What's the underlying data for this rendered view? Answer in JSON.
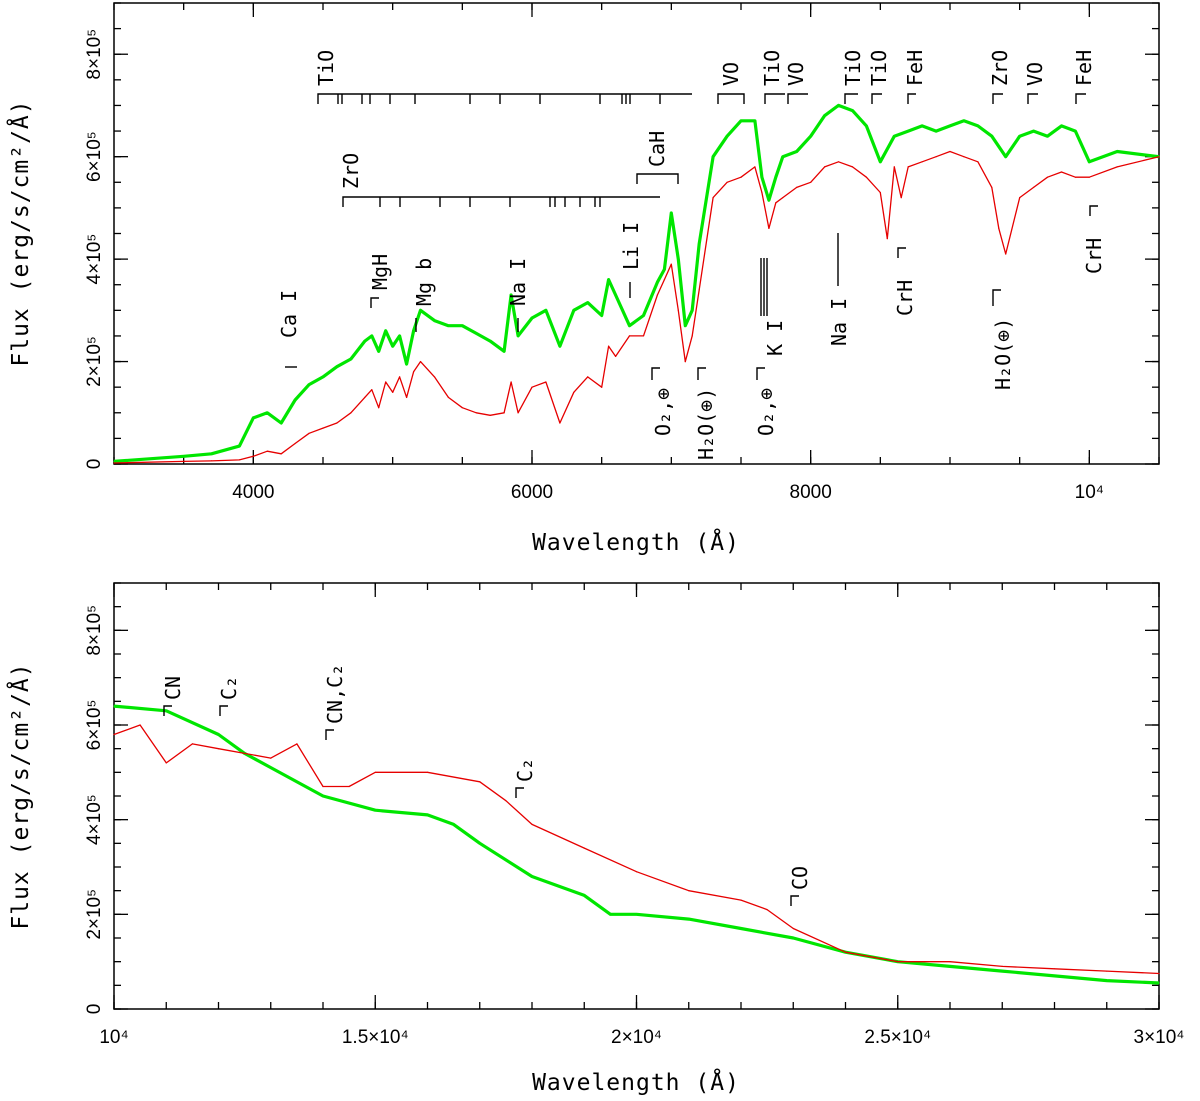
{
  "chart_data": [
    {
      "type": "line",
      "panel": "top",
      "xlabel": "Wavelength (Å)",
      "ylabel": "Flux (erg/s/cm²/Å)",
      "xlim": [
        3000,
        10500
      ],
      "ylim": [
        0,
        900000
      ],
      "x_ticks": [
        {
          "value": 4000,
          "label": "4000"
        },
        {
          "value": 6000,
          "label": "6000"
        },
        {
          "value": 8000,
          "label": "8000"
        },
        {
          "value": 10000,
          "label": "10⁴"
        }
      ],
      "y_ticks": [
        {
          "value": 0,
          "label": "0"
        },
        {
          "value": 200000,
          "label": "2×10⁵"
        },
        {
          "value": 400000,
          "label": "4×10⁵"
        },
        {
          "value": 600000,
          "label": "6×10⁵"
        },
        {
          "value": 800000,
          "label": "8×10⁵"
        }
      ],
      "series": [
        {
          "name": "green spectrum",
          "color": "#00e600",
          "x": [
            3000,
            3500,
            3700,
            3900,
            4000,
            4100,
            4200,
            4300,
            4400,
            4500,
            4600,
            4700,
            4800,
            4850,
            4900,
            4950,
            5000,
            5050,
            5100,
            5150,
            5200,
            5300,
            5400,
            5500,
            5600,
            5700,
            5800,
            5850,
            5900,
            6000,
            6100,
            6200,
            6300,
            6400,
            6500,
            6550,
            6600,
            6700,
            6800,
            6900,
            6950,
            7000,
            7050,
            7100,
            7150,
            7200,
            7300,
            7400,
            7500,
            7600,
            7650,
            7700,
            7750,
            7800,
            7900,
            8000,
            8100,
            8200,
            8300,
            8400,
            8500,
            8600,
            8700,
            8800,
            8900,
            9000,
            9100,
            9200,
            9300,
            9400,
            9500,
            9600,
            9700,
            9800,
            9900,
            10000,
            10200,
            10500
          ],
          "values": [
            5000,
            15000,
            20000,
            35000,
            90000,
            100000,
            80000,
            125000,
            155000,
            170000,
            190000,
            205000,
            240000,
            250000,
            220000,
            260000,
            230000,
            250000,
            195000,
            260000,
            300000,
            280000,
            270000,
            270000,
            255000,
            240000,
            220000,
            330000,
            250000,
            285000,
            300000,
            230000,
            300000,
            315000,
            290000,
            360000,
            330000,
            270000,
            290000,
            355000,
            380000,
            490000,
            400000,
            270000,
            300000,
            430000,
            600000,
            640000,
            670000,
            670000,
            560000,
            515000,
            560000,
            600000,
            610000,
            640000,
            680000,
            700000,
            690000,
            660000,
            590000,
            640000,
            650000,
            660000,
            650000,
            660000,
            670000,
            660000,
            640000,
            600000,
            640000,
            650000,
            640000,
            660000,
            650000,
            590000,
            610000,
            600000
          ]
        },
        {
          "name": "red spectrum",
          "color": "#e60000",
          "x": [
            3000,
            3500,
            3700,
            3900,
            4000,
            4100,
            4200,
            4300,
            4400,
            4500,
            4600,
            4700,
            4800,
            4850,
            4900,
            4950,
            5000,
            5050,
            5100,
            5150,
            5200,
            5300,
            5400,
            5500,
            5600,
            5700,
            5800,
            5850,
            5900,
            6000,
            6100,
            6200,
            6300,
            6400,
            6500,
            6550,
            6600,
            6700,
            6800,
            6900,
            6950,
            7000,
            7050,
            7100,
            7150,
            7200,
            7300,
            7400,
            7500,
            7600,
            7650,
            7700,
            7750,
            7800,
            7900,
            8000,
            8100,
            8200,
            8300,
            8400,
            8500,
            8550,
            8600,
            8650,
            8700,
            8800,
            8900,
            9000,
            9100,
            9200,
            9300,
            9350,
            9400,
            9500,
            9600,
            9700,
            9800,
            9900,
            10000,
            10200,
            10500
          ],
          "values": [
            2000,
            5000,
            6000,
            8000,
            15000,
            25000,
            20000,
            40000,
            60000,
            70000,
            80000,
            100000,
            130000,
            145000,
            110000,
            160000,
            140000,
            170000,
            130000,
            180000,
            200000,
            170000,
            130000,
            110000,
            100000,
            95000,
            100000,
            160000,
            100000,
            150000,
            160000,
            80000,
            140000,
            170000,
            150000,
            230000,
            210000,
            250000,
            250000,
            330000,
            360000,
            390000,
            300000,
            200000,
            250000,
            340000,
            520000,
            550000,
            560000,
            580000,
            530000,
            460000,
            510000,
            520000,
            540000,
            550000,
            580000,
            590000,
            580000,
            560000,
            530000,
            440000,
            580000,
            520000,
            580000,
            590000,
            600000,
            610000,
            600000,
            590000,
            540000,
            460000,
            410000,
            520000,
            540000,
            560000,
            570000,
            560000,
            560000,
            580000,
            600000
          ]
        }
      ],
      "annotations": [
        "TiO",
        "ZrO",
        "CaH",
        "VO",
        "TiO",
        "VO",
        "TiO",
        "TiO",
        "FeH",
        "ZrO",
        "VO",
        "FeH",
        "Ca I",
        "MgH",
        "Mg b",
        "Na I",
        "Li I",
        "O₂,⊕",
        "H₂O(⊕)",
        "O₂,⊕",
        "K I",
        "Na I",
        "CrH",
        "H₂O(⊕)",
        "CrH"
      ]
    },
    {
      "type": "line",
      "panel": "bottom",
      "xlabel": "Wavelength (Å)",
      "ylabel": "Flux (erg/s/cm²/Å)",
      "xlim": [
        10000,
        30000
      ],
      "ylim": [
        0,
        900000
      ],
      "x_ticks": [
        {
          "value": 10000,
          "label": "10⁴"
        },
        {
          "value": 15000,
          "label": "1.5×10⁴"
        },
        {
          "value": 20000,
          "label": "2×10⁴"
        },
        {
          "value": 25000,
          "label": "2.5×10⁴"
        },
        {
          "value": 30000,
          "label": "3×10⁴"
        }
      ],
      "y_ticks": [
        {
          "value": 0,
          "label": "0"
        },
        {
          "value": 200000,
          "label": "2×10⁵"
        },
        {
          "value": 400000,
          "label": "4×10⁵"
        },
        {
          "value": 600000,
          "label": "6×10⁵"
        },
        {
          "value": 800000,
          "label": "8×10⁵"
        }
      ],
      "series": [
        {
          "name": "green spectrum",
          "color": "#00e600",
          "x": [
            10000,
            11000,
            12000,
            12500,
            13000,
            14000,
            15000,
            16000,
            16500,
            17000,
            18000,
            19000,
            19500,
            20000,
            21000,
            22000,
            23000,
            24000,
            25000,
            26000,
            27000,
            28000,
            29000,
            30000
          ],
          "values": [
            640000,
            630000,
            580000,
            540000,
            510000,
            450000,
            420000,
            410000,
            390000,
            350000,
            280000,
            240000,
            200000,
            200000,
            190000,
            170000,
            150000,
            120000,
            100000,
            90000,
            80000,
            70000,
            60000,
            55000
          ]
        },
        {
          "name": "red spectrum",
          "color": "#e60000",
          "x": [
            10000,
            10500,
            11000,
            11500,
            12000,
            13000,
            13500,
            14000,
            14500,
            15000,
            16000,
            17000,
            17500,
            18000,
            19000,
            20000,
            21000,
            22000,
            22500,
            23000,
            24000,
            25000,
            26000,
            27000,
            28000,
            29000,
            30000
          ],
          "values": [
            580000,
            600000,
            520000,
            560000,
            550000,
            530000,
            560000,
            470000,
            470000,
            500000,
            500000,
            480000,
            440000,
            390000,
            340000,
            290000,
            250000,
            230000,
            210000,
            170000,
            120000,
            100000,
            100000,
            90000,
            85000,
            80000,
            75000
          ]
        }
      ],
      "annotations": [
        "CN",
        "C₂",
        "CN,C₂",
        "C₂",
        "CO"
      ]
    }
  ]
}
